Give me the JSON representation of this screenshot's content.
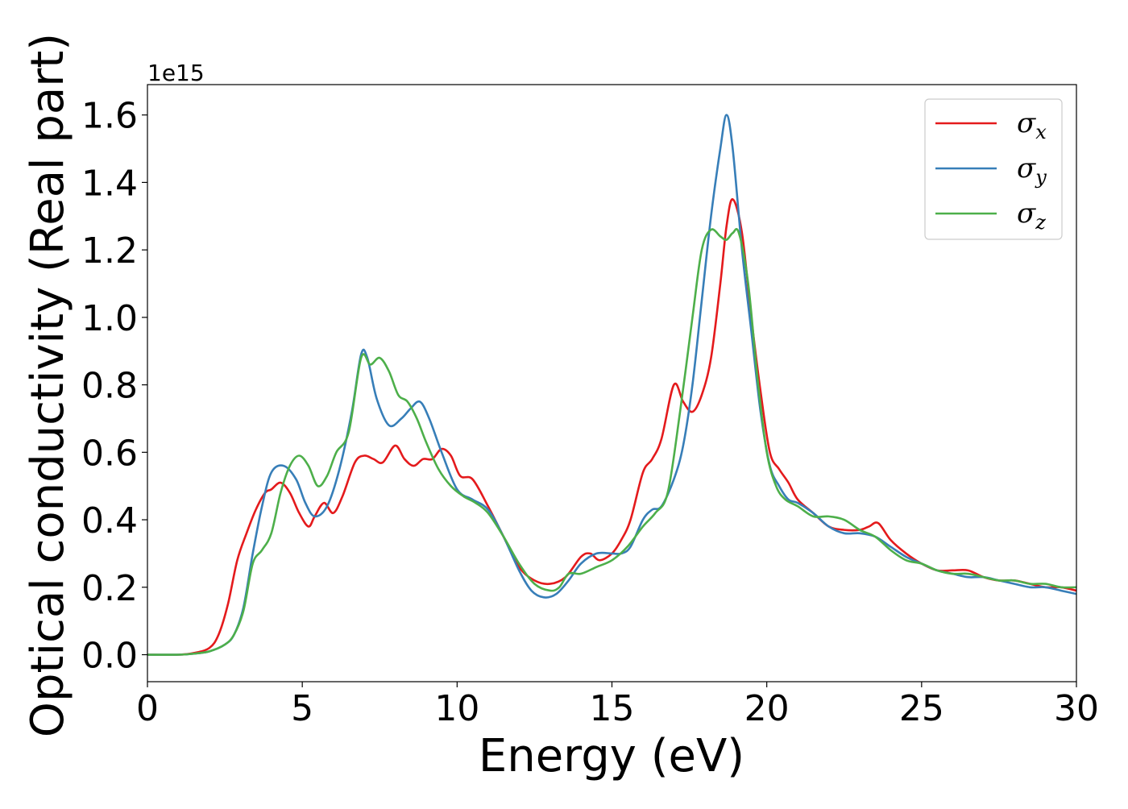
{
  "chart_data": {
    "type": "line",
    "title": "",
    "xlabel": "Energy (eV)",
    "ylabel": "Optical conductivity (Real part)",
    "y_offset_label": "1e15",
    "xlim": [
      0,
      30
    ],
    "ylim": [
      -0.08,
      1.69
    ],
    "x_ticks": [
      0,
      5,
      10,
      15,
      20,
      25,
      30
    ],
    "x_tick_labels": [
      "0",
      "5",
      "10",
      "15",
      "20",
      "25",
      "30"
    ],
    "y_ticks": [
      0.0,
      0.2,
      0.4,
      0.6,
      0.8,
      1.0,
      1.2,
      1.4,
      1.6
    ],
    "y_tick_labels": [
      "0.0",
      "0.2",
      "0.4",
      "0.6",
      "0.8",
      "1.0",
      "1.2",
      "1.4",
      "1.6"
    ],
    "grid": false,
    "legend_position": "top-right",
    "legend": [
      {
        "symbol": "σ",
        "subscript": "x",
        "color": "#e41a1c"
      },
      {
        "symbol": "σ",
        "subscript": "y",
        "color": "#377eb8"
      },
      {
        "symbol": "σ",
        "subscript": "z",
        "color": "#4daf4a"
      }
    ],
    "series": [
      {
        "name": "σx",
        "color": "#e41a1c",
        "x": [
          0,
          1,
          1.5,
          2,
          2.3,
          2.6,
          2.9,
          3.2,
          3.5,
          3.8,
          4.0,
          4.3,
          4.6,
          4.9,
          5.2,
          5.4,
          5.7,
          6.0,
          6.3,
          6.7,
          7.0,
          7.3,
          7.6,
          8.0,
          8.3,
          8.6,
          8.9,
          9.2,
          9.5,
          9.8,
          10.1,
          10.5,
          11.0,
          11.5,
          12.0,
          12.5,
          13.0,
          13.5,
          14.0,
          14.3,
          14.6,
          15.0,
          15.3,
          15.6,
          16.0,
          16.3,
          16.6,
          17.0,
          17.3,
          17.6,
          17.9,
          18.2,
          18.5,
          18.7,
          18.9,
          19.2,
          19.5,
          19.8,
          20.1,
          20.4,
          20.7,
          21.0,
          21.5,
          22.0,
          22.5,
          23.0,
          23.3,
          23.6,
          24.0,
          24.5,
          25.0,
          25.5,
          26.0,
          26.5,
          27.0,
          27.5,
          28.0,
          28.5,
          29.0,
          29.5,
          30.0
        ],
        "values": [
          0,
          0,
          0.005,
          0.02,
          0.06,
          0.15,
          0.28,
          0.36,
          0.43,
          0.48,
          0.49,
          0.51,
          0.48,
          0.42,
          0.38,
          0.41,
          0.45,
          0.42,
          0.47,
          0.57,
          0.59,
          0.58,
          0.57,
          0.62,
          0.58,
          0.56,
          0.58,
          0.58,
          0.61,
          0.59,
          0.53,
          0.52,
          0.44,
          0.35,
          0.26,
          0.22,
          0.21,
          0.23,
          0.29,
          0.3,
          0.28,
          0.3,
          0.34,
          0.4,
          0.54,
          0.58,
          0.64,
          0.8,
          0.75,
          0.72,
          0.77,
          0.88,
          1.1,
          1.27,
          1.35,
          1.25,
          1.0,
          0.78,
          0.6,
          0.55,
          0.51,
          0.46,
          0.42,
          0.38,
          0.37,
          0.37,
          0.38,
          0.39,
          0.34,
          0.3,
          0.27,
          0.25,
          0.25,
          0.25,
          0.23,
          0.22,
          0.22,
          0.21,
          0.2,
          0.2,
          0.19
        ]
      },
      {
        "name": "σy",
        "color": "#377eb8",
        "x": [
          0,
          1,
          1.5,
          2,
          2.5,
          2.8,
          3.1,
          3.4,
          3.7,
          4.0,
          4.4,
          4.8,
          5.1,
          5.4,
          5.8,
          6.2,
          6.6,
          6.9,
          7.1,
          7.4,
          7.8,
          8.2,
          8.5,
          8.8,
          9.1,
          9.5,
          10.0,
          10.5,
          11.0,
          11.5,
          12.0,
          12.4,
          12.8,
          13.2,
          13.6,
          14.0,
          14.5,
          15.0,
          15.3,
          15.6,
          16.0,
          16.3,
          16.6,
          17.0,
          17.3,
          17.6,
          17.9,
          18.2,
          18.5,
          18.7,
          18.9,
          19.2,
          19.5,
          19.8,
          20.1,
          20.4,
          20.7,
          21.0,
          21.5,
          22.0,
          22.5,
          23.0,
          23.5,
          24.0,
          24.5,
          25.0,
          25.5,
          26.0,
          26.5,
          27.0,
          27.5,
          28.0,
          28.5,
          29.0,
          29.5,
          30.0
        ],
        "values": [
          0,
          0,
          0.003,
          0.01,
          0.03,
          0.06,
          0.14,
          0.3,
          0.44,
          0.54,
          0.56,
          0.52,
          0.45,
          0.41,
          0.44,
          0.55,
          0.72,
          0.89,
          0.88,
          0.76,
          0.68,
          0.7,
          0.73,
          0.75,
          0.7,
          0.6,
          0.49,
          0.46,
          0.43,
          0.35,
          0.25,
          0.19,
          0.17,
          0.18,
          0.22,
          0.27,
          0.3,
          0.3,
          0.3,
          0.32,
          0.4,
          0.43,
          0.44,
          0.52,
          0.62,
          0.8,
          1.05,
          1.3,
          1.5,
          1.6,
          1.5,
          1.2,
          0.96,
          0.72,
          0.56,
          0.5,
          0.46,
          0.45,
          0.42,
          0.38,
          0.36,
          0.36,
          0.35,
          0.32,
          0.29,
          0.27,
          0.25,
          0.24,
          0.23,
          0.23,
          0.22,
          0.21,
          0.2,
          0.2,
          0.19,
          0.18
        ]
      },
      {
        "name": "σz",
        "color": "#4daf4a",
        "x": [
          0,
          1,
          1.5,
          2,
          2.5,
          2.8,
          3.1,
          3.4,
          3.7,
          4.0,
          4.3,
          4.6,
          4.9,
          5.2,
          5.5,
          5.8,
          6.1,
          6.5,
          6.9,
          7.2,
          7.5,
          7.8,
          8.1,
          8.4,
          8.7,
          9.0,
          9.4,
          9.8,
          10.2,
          10.6,
          11.0,
          11.5,
          12.0,
          12.5,
          13.0,
          13.3,
          13.6,
          14.0,
          14.5,
          15.0,
          15.5,
          16.0,
          16.4,
          16.8,
          17.2,
          17.6,
          17.9,
          18.2,
          18.5,
          18.7,
          18.9,
          19.1,
          19.4,
          19.7,
          20.0,
          20.3,
          20.6,
          21.0,
          21.5,
          22.0,
          22.5,
          23.0,
          23.5,
          24.0,
          24.5,
          25.0,
          25.5,
          26.0,
          26.5,
          27.0,
          27.5,
          28.0,
          28.5,
          29.0,
          29.5,
          30.0
        ],
        "values": [
          0,
          0,
          0.003,
          0.01,
          0.03,
          0.06,
          0.13,
          0.27,
          0.31,
          0.36,
          0.48,
          0.56,
          0.59,
          0.56,
          0.5,
          0.53,
          0.6,
          0.66,
          0.88,
          0.86,
          0.88,
          0.84,
          0.77,
          0.75,
          0.7,
          0.63,
          0.55,
          0.5,
          0.47,
          0.45,
          0.42,
          0.35,
          0.27,
          0.21,
          0.19,
          0.2,
          0.24,
          0.24,
          0.26,
          0.28,
          0.32,
          0.38,
          0.42,
          0.48,
          0.72,
          1.0,
          1.2,
          1.26,
          1.24,
          1.23,
          1.25,
          1.25,
          1.1,
          0.82,
          0.6,
          0.5,
          0.46,
          0.44,
          0.41,
          0.41,
          0.4,
          0.37,
          0.35,
          0.31,
          0.28,
          0.27,
          0.25,
          0.24,
          0.24,
          0.23,
          0.22,
          0.22,
          0.21,
          0.21,
          0.2,
          0.2
        ]
      }
    ]
  }
}
